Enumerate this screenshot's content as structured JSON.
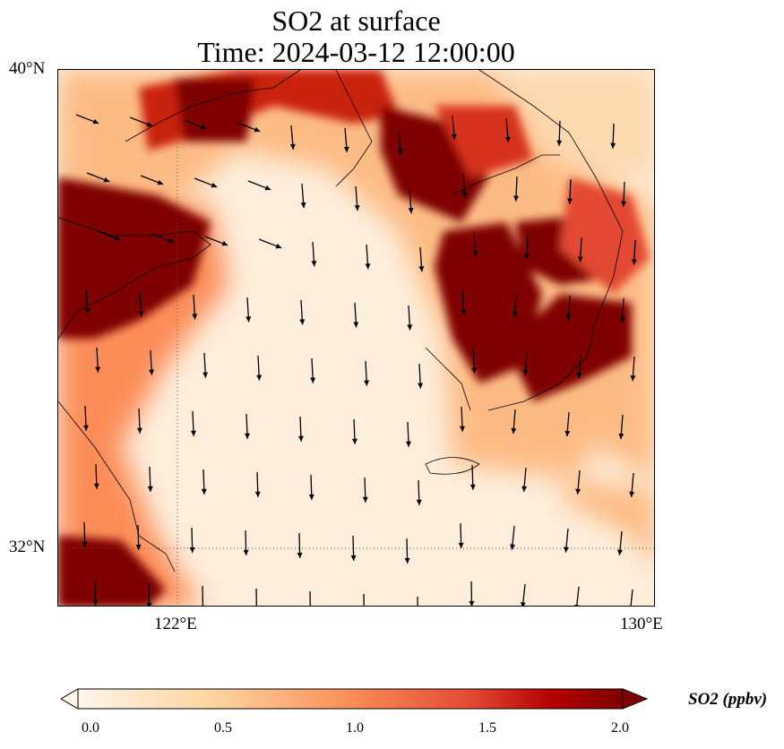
{
  "title": {
    "line1": "SO2 at surface",
    "line2": "Time: 2024-03-12 12:00:00"
  },
  "axes": {
    "lat_labels": [
      "40°N",
      "32°N"
    ],
    "lon_labels": [
      "122°E",
      "130°E"
    ]
  },
  "colorbar": {
    "label": "SO2 (ppbv)",
    "ticks": [
      "0.0",
      "0.5",
      "1.0",
      "1.5",
      "2.0"
    ],
    "range": [
      0,
      2
    ],
    "colors": [
      "#fff5eb",
      "#fdd49e",
      "#fc8d59",
      "#e34a33",
      "#b30000",
      "#7f0000"
    ]
  },
  "chart_data": {
    "type": "heatmap",
    "title": "SO2 at surface / Time: 2024-03-12 12:00:00",
    "variable": "SO2",
    "units": "ppbv",
    "lon_range": [
      120,
      130
    ],
    "lat_range": [
      31,
      40
    ],
    "gridlines": {
      "lon": [
        122
      ],
      "lat": [
        32
      ]
    },
    "overlay": "wind vectors (mostly southward/south-southeast)"
  }
}
